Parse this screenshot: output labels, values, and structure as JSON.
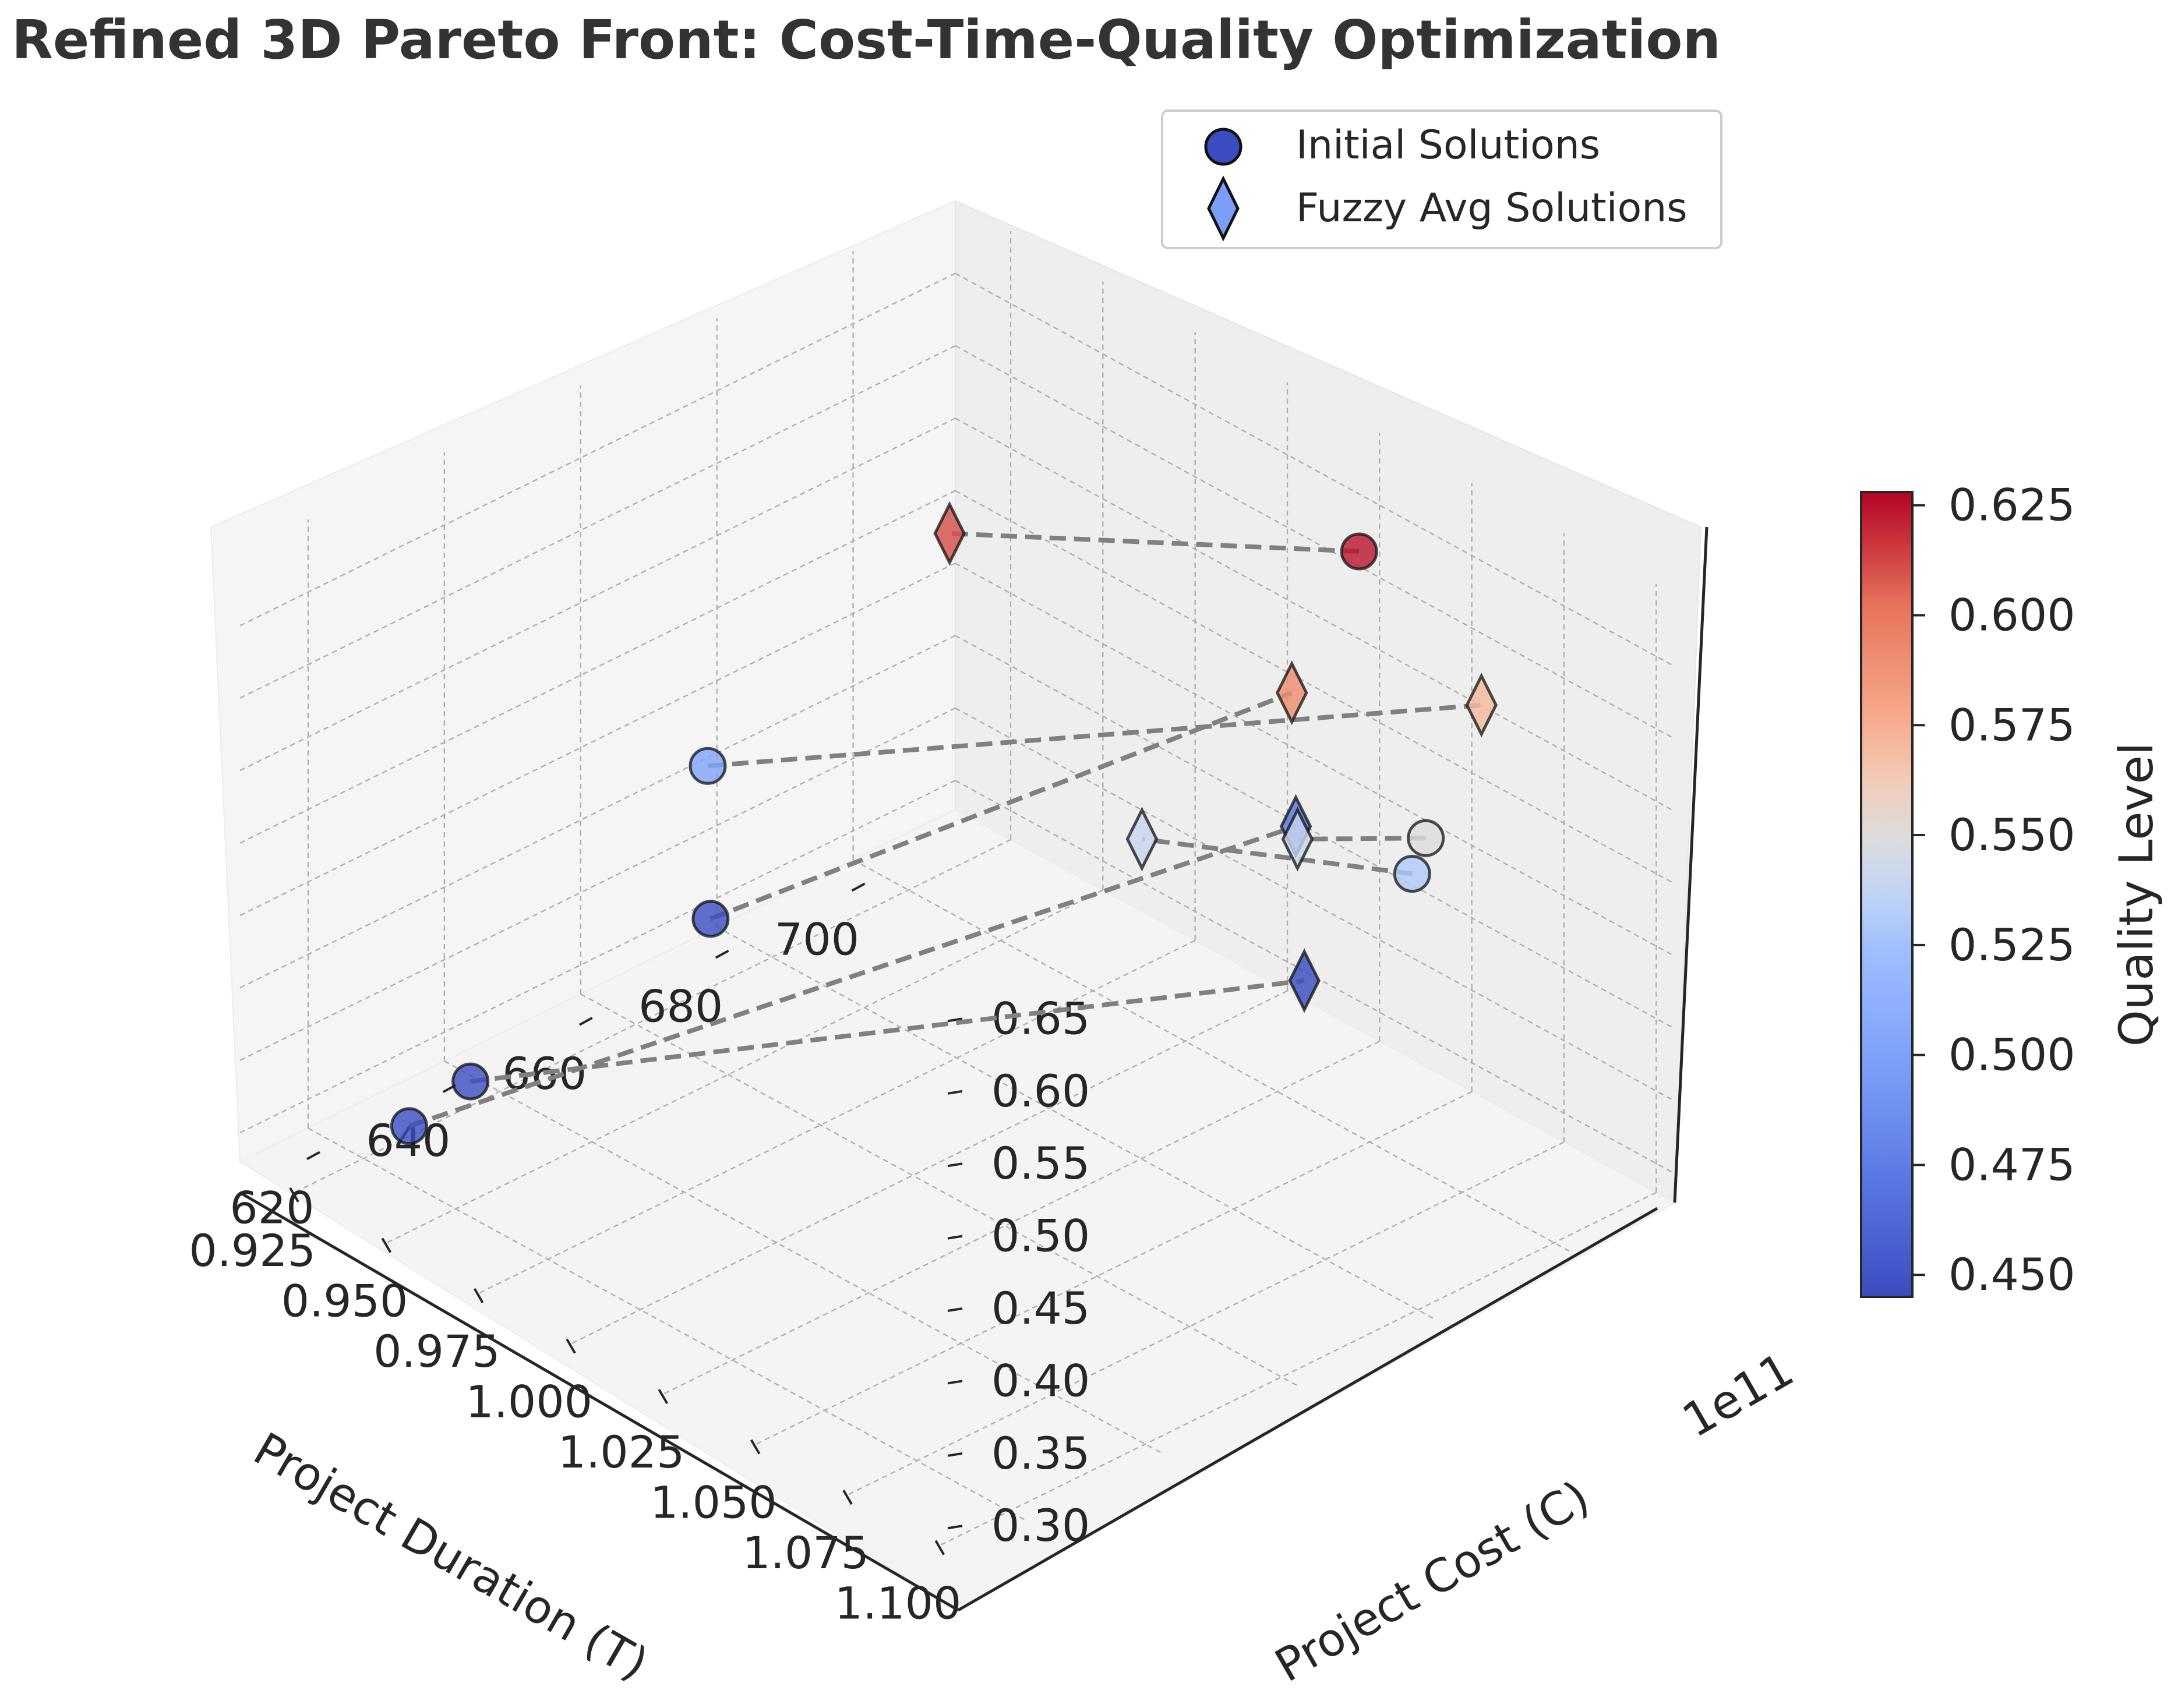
{
  "chart_data": {
    "type": "scatter",
    "projection": "3d",
    "title": "Refined 3D Pareto Front: Cost-Time-Quality Optimization",
    "xlabel": "Project Duration (T)",
    "ylabel": "Project Cost (C)",
    "zlabel": "",
    "y_offset_label": "1e11",
    "x_ticks": [
      "620",
      "640",
      "660",
      "680",
      "700"
    ],
    "x_tick_values": [
      620,
      640,
      660,
      680,
      700
    ],
    "y_ticks": [
      "0.925",
      "0.950",
      "0.975",
      "1.000",
      "1.025",
      "1.050",
      "1.075",
      "1.100"
    ],
    "y_tick_values": [
      0.925,
      0.95,
      0.975,
      1.0,
      1.025,
      1.05,
      1.075,
      1.1
    ],
    "z_ticks": [
      "0.30",
      "0.35",
      "0.40",
      "0.45",
      "0.50",
      "0.55",
      "0.60",
      "0.65"
    ],
    "z_tick_values": [
      0.3,
      0.35,
      0.4,
      0.45,
      0.5,
      0.55,
      0.6,
      0.65
    ],
    "xlim": [
      610,
      715
    ],
    "ylim": [
      0.91,
      1.105
    ],
    "zlim": [
      0.28,
      0.7
    ],
    "colorbar": {
      "label": "Quality Level",
      "range": [
        0.445,
        0.628
      ],
      "ticks": [
        "0.450",
        "0.475",
        "0.500",
        "0.525",
        "0.550",
        "0.575",
        "0.600",
        "0.625"
      ],
      "tick_values": [
        0.45,
        0.475,
        0.5,
        0.525,
        0.55,
        0.575,
        0.6,
        0.625
      ],
      "colormap": "coolwarm"
    },
    "legend": {
      "placement": "top-right",
      "entries": [
        "Initial Solutions",
        "Fuzzy Avg Solutions"
      ]
    },
    "series": [
      {
        "name": "Initial Solutions",
        "marker": "circle",
        "points": [
          {
            "T": 712,
            "C": 1.025,
            "Q": 0.625
          },
          {
            "T": 624,
            "C": 0.93,
            "Q": 0.3
          },
          {
            "T": 633,
            "C": 0.93,
            "Q": 0.31
          },
          {
            "T": 652,
            "C": 0.96,
            "Q": 0.42
          },
          {
            "T": 657,
            "C": 0.95,
            "Q": 0.5
          },
          {
            "T": 692,
            "C": 1.08,
            "Q": 0.55
          },
          {
            "T": 690,
            "C": 1.08,
            "Q": 0.53
          }
        ]
      },
      {
        "name": "Fuzzy Avg Solutions",
        "marker": "diamond",
        "points": [
          {
            "T": 686,
            "C": 0.962,
            "Q": 0.61
          },
          {
            "T": 700,
            "C": 1.03,
            "Q": 0.47
          },
          {
            "T": 685,
            "C": 1.06,
            "Q": 0.44
          },
          {
            "T": 694,
            "C": 1.04,
            "Q": 0.59
          },
          {
            "T": 711,
            "C": 1.06,
            "Q": 0.57
          },
          {
            "T": 684,
            "C": 1.06,
            "Q": 0.54
          },
          {
            "T": 672,
            "C": 1.04,
            "Q": 0.54
          }
        ]
      }
    ],
    "links": [
      [
        0,
        0
      ],
      [
        1,
        1
      ],
      [
        2,
        2
      ],
      [
        3,
        3
      ],
      [
        4,
        4
      ],
      [
        5,
        5
      ],
      [
        6,
        6
      ]
    ],
    "colors": {
      "cool": "#3b4cc0",
      "neutral": "#dddddd",
      "warm": "#b40426",
      "pane": "#f2f2f2",
      "link": "#808080"
    }
  }
}
